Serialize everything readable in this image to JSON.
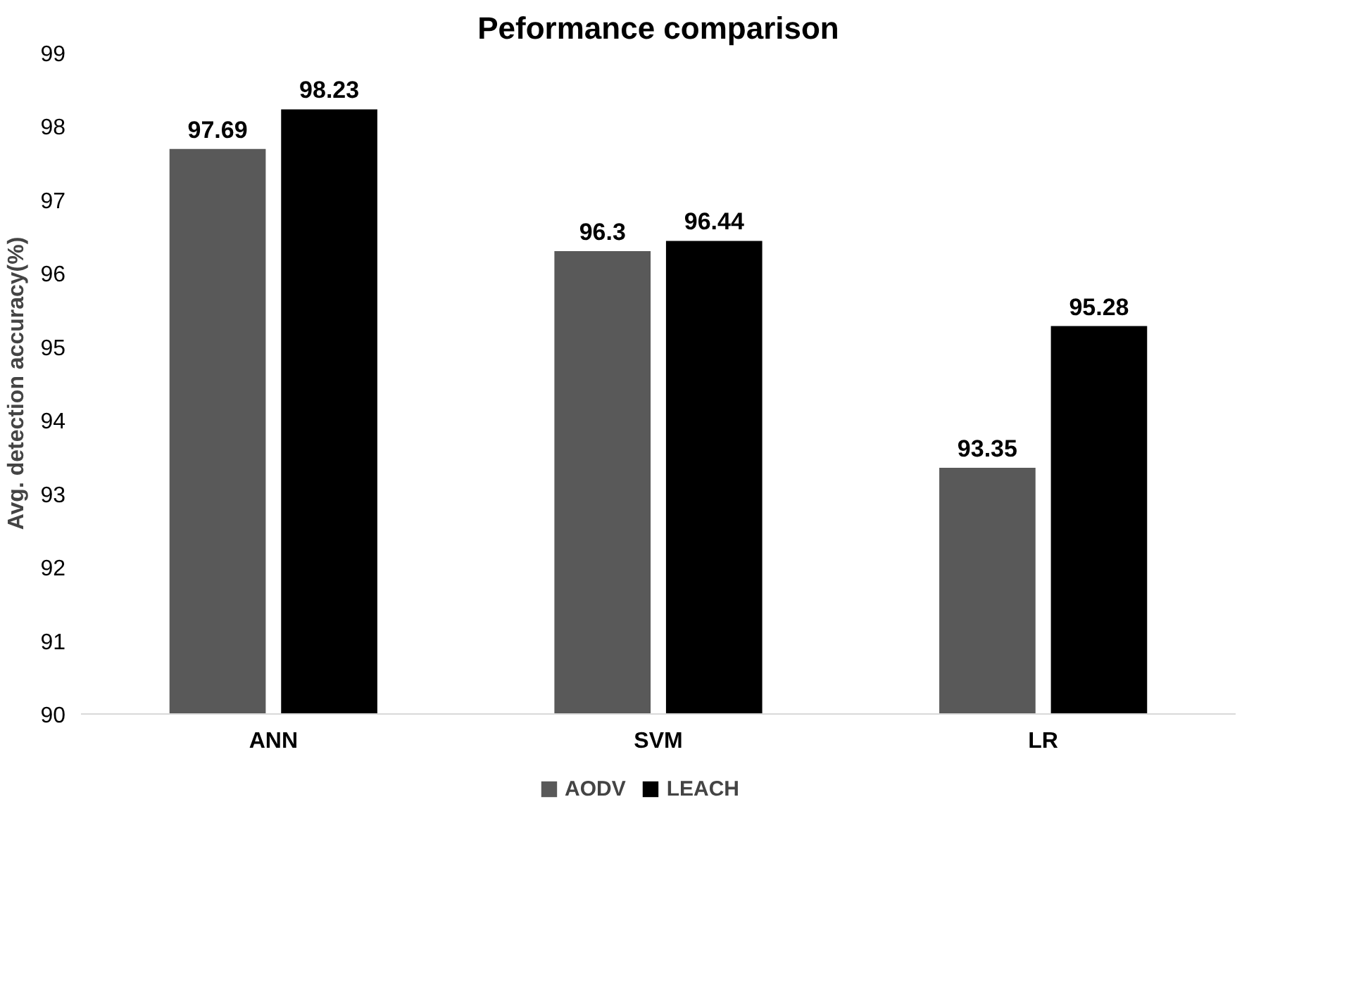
{
  "chart_data": {
    "type": "bar",
    "title": "Peformance comparison",
    "ylabel": "Avg. detection accuracy(%)",
    "categories": [
      "ANN",
      "SVM",
      "LR"
    ],
    "series": [
      {
        "name": "AODV",
        "color": "#595959",
        "values": [
          97.69,
          96.3,
          93.35
        ]
      },
      {
        "name": "LEACH",
        "color": "#000000",
        "values": [
          98.23,
          96.44,
          95.28
        ]
      }
    ],
    "ylim": [
      90,
      99
    ],
    "yticks": [
      90,
      91,
      92,
      93,
      94,
      95,
      96,
      97,
      98,
      99
    ],
    "grid": false,
    "legend": "bottom",
    "data_labels": true
  }
}
